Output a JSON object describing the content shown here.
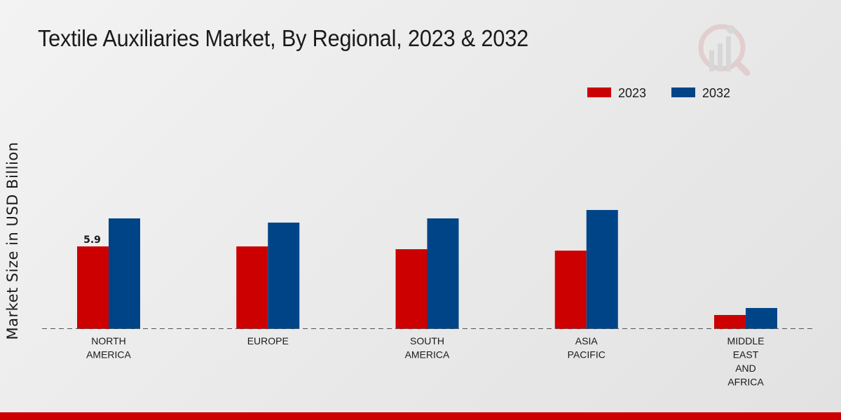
{
  "chart_data": {
    "type": "bar",
    "title": "Textile Auxiliaries Market, By Regional, 2023 & 2032",
    "xlabel": "",
    "ylabel": "Market Size in USD Billion",
    "categories": [
      [
        "NORTH",
        "AMERICA"
      ],
      [
        "EUROPE"
      ],
      [
        "SOUTH",
        "AMERICA"
      ],
      [
        "ASIA",
        "PACIFIC"
      ],
      [
        "MIDDLE",
        "EAST",
        "AND",
        "AFRICA"
      ]
    ],
    "series": [
      {
        "name": "2023",
        "color": "#cc0000",
        "values": [
          5.9,
          5.9,
          5.7,
          5.6,
          1.0
        ]
      },
      {
        "name": "2032",
        "color": "#004488",
        "values": [
          7.9,
          7.6,
          7.9,
          8.5,
          1.5
        ]
      }
    ],
    "data_labels": [
      {
        "series": 0,
        "index": 0,
        "text": "5.9"
      }
    ],
    "ylim": [
      0,
      15
    ],
    "legend_position": "top-right",
    "grid": false
  }
}
